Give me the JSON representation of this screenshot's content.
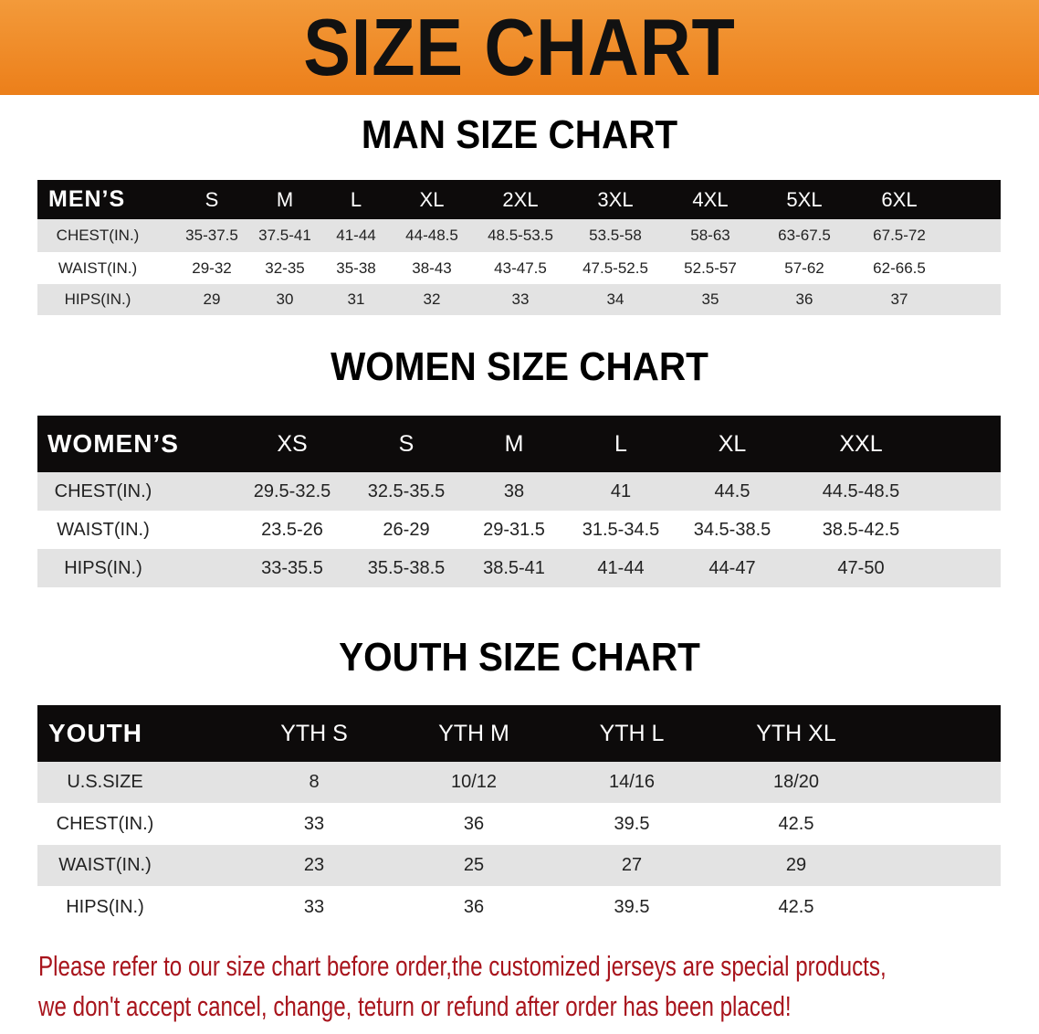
{
  "banner": {
    "title": "SIZE CHART",
    "color": "#ee861f"
  },
  "men": {
    "title": "MAN SIZE CHART",
    "header": [
      "MEN’S",
      "S",
      "M",
      "L",
      "XL",
      "2XL",
      "3XL",
      "4XL",
      "5XL",
      "6XL"
    ],
    "rows": [
      [
        "CHEST(IN.)",
        "35-37.5",
        "37.5-41",
        "41-44",
        "44-48.5",
        "48.5-53.5",
        "53.5-58",
        "58-63",
        "63-67.5",
        "67.5-72"
      ],
      [
        "WAIST(IN.)",
        "29-32",
        "32-35",
        "35-38",
        "38-43",
        "43-47.5",
        "47.5-52.5",
        "52.5-57",
        "57-62",
        "62-66.5"
      ],
      [
        "HIPS(IN.)",
        "29",
        "30",
        "31",
        "32",
        "33",
        "34",
        "35",
        "36",
        "37"
      ]
    ]
  },
  "women": {
    "title": "WOMEN SIZE CHART",
    "header": [
      "WOMEN’S",
      "XS",
      "S",
      "M",
      "L",
      "XL",
      "XXL"
    ],
    "rows": [
      [
        "CHEST(IN.)",
        "29.5-32.5",
        "32.5-35.5",
        "38",
        "41",
        "44.5",
        "44.5-48.5"
      ],
      [
        "WAIST(IN.)",
        "23.5-26",
        "26-29",
        "29-31.5",
        "31.5-34.5",
        "34.5-38.5",
        "38.5-42.5"
      ],
      [
        "HIPS(IN.)",
        "33-35.5",
        "35.5-38.5",
        "38.5-41",
        "41-44",
        "44-47",
        "47-50"
      ]
    ]
  },
  "youth": {
    "title": "YOUTH SIZE CHART",
    "header": [
      "YOUTH",
      "YTH S",
      "YTH M",
      "YTH L",
      "YTH XL"
    ],
    "rows": [
      [
        "U.S.SIZE",
        "8",
        "10/12",
        "14/16",
        "18/20"
      ],
      [
        "CHEST(IN.)",
        "33",
        "36",
        "39.5",
        "42.5"
      ],
      [
        "WAIST(IN.)",
        "23",
        "25",
        "27",
        "29"
      ],
      [
        "HIPS(IN.)",
        "33",
        "36",
        "39.5",
        "42.5"
      ]
    ]
  },
  "notice": {
    "line1": "Please refer to our size chart before order,the customized jerseys are special products,",
    "line2": "we don't accept cancel, change, teturn or refund after order has been placed!",
    "color": "#a8141c"
  }
}
